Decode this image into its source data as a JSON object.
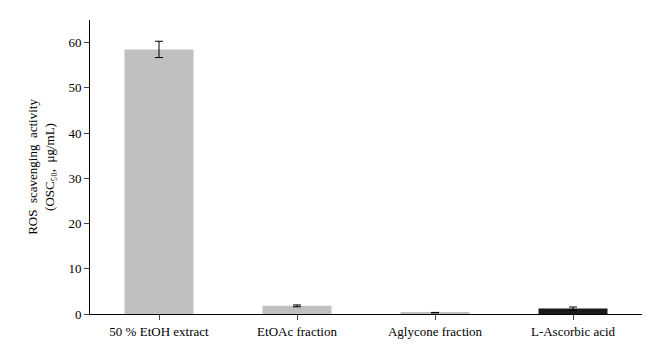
{
  "chart_data": {
    "type": "bar",
    "categories": [
      "50 % EtOH extract",
      "EtOAc fraction",
      "Aglycone fraction",
      "L-Ascorbic acid"
    ],
    "values": [
      58.5,
      1.8,
      0.3,
      1.2
    ],
    "errors": [
      1.8,
      0.2,
      0.05,
      0.35
    ],
    "colors": [
      "#c0c0c0",
      "#c0c0c0",
      "#c0c0c0",
      "#1a1a1a"
    ],
    "ylabel": "ROS  scavenging  activity\n(OSC₅₀,  μg/mL)",
    "ylim": [
      0,
      65
    ],
    "yticks": [
      0,
      10,
      20,
      30,
      40,
      50,
      60
    ],
    "grid": false
  }
}
